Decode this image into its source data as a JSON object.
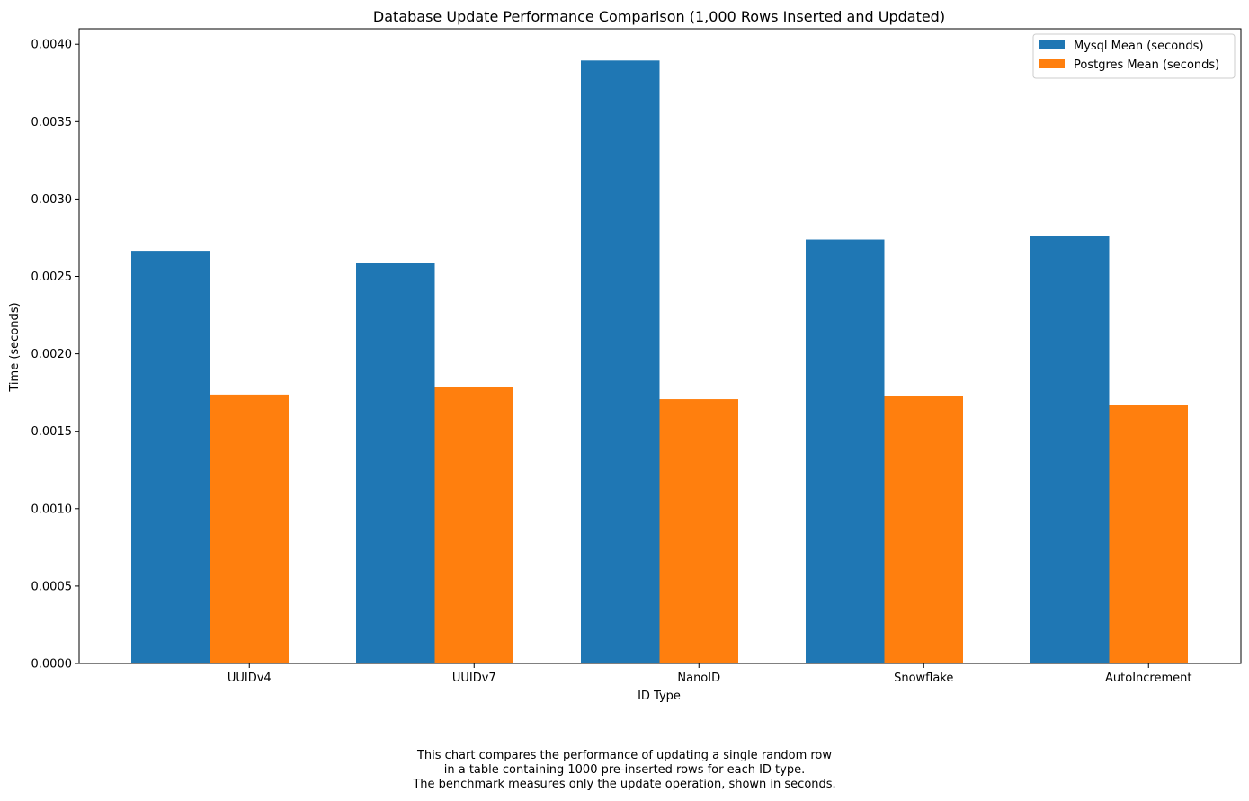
{
  "chart_data": {
    "type": "bar",
    "title": "Database Update Performance Comparison (1,000 Rows Inserted and Updated)",
    "xlabel": "ID Type",
    "ylabel": "Time (seconds)",
    "categories": [
      "UUIDv4",
      "UUIDv7",
      "NanoID",
      "Snowflake",
      "AutoIncrement"
    ],
    "series": [
      {
        "name": "Mysql Mean (seconds)",
        "color": "#1f77b4",
        "values": [
          0.002665,
          0.002585,
          0.003895,
          0.002738,
          0.002762
        ]
      },
      {
        "name": "Postgres Mean (seconds)",
        "color": "#ff7f0e",
        "values": [
          0.001737,
          0.001786,
          0.001707,
          0.001729,
          0.001672
        ]
      }
    ],
    "ylim": [
      0,
      0.0041
    ],
    "yticks": [
      "0.0000",
      "0.0005",
      "0.0010",
      "0.0015",
      "0.0020",
      "0.0025",
      "0.0030",
      "0.0035",
      "0.0040"
    ],
    "legend_position": "top-right",
    "grid": false
  },
  "caption": {
    "lines": [
      "This chart compares the performance of updating a single random row",
      "in a table containing 1000 pre-inserted rows for each ID type.",
      "The benchmark measures only the update operation, shown in seconds."
    ]
  }
}
